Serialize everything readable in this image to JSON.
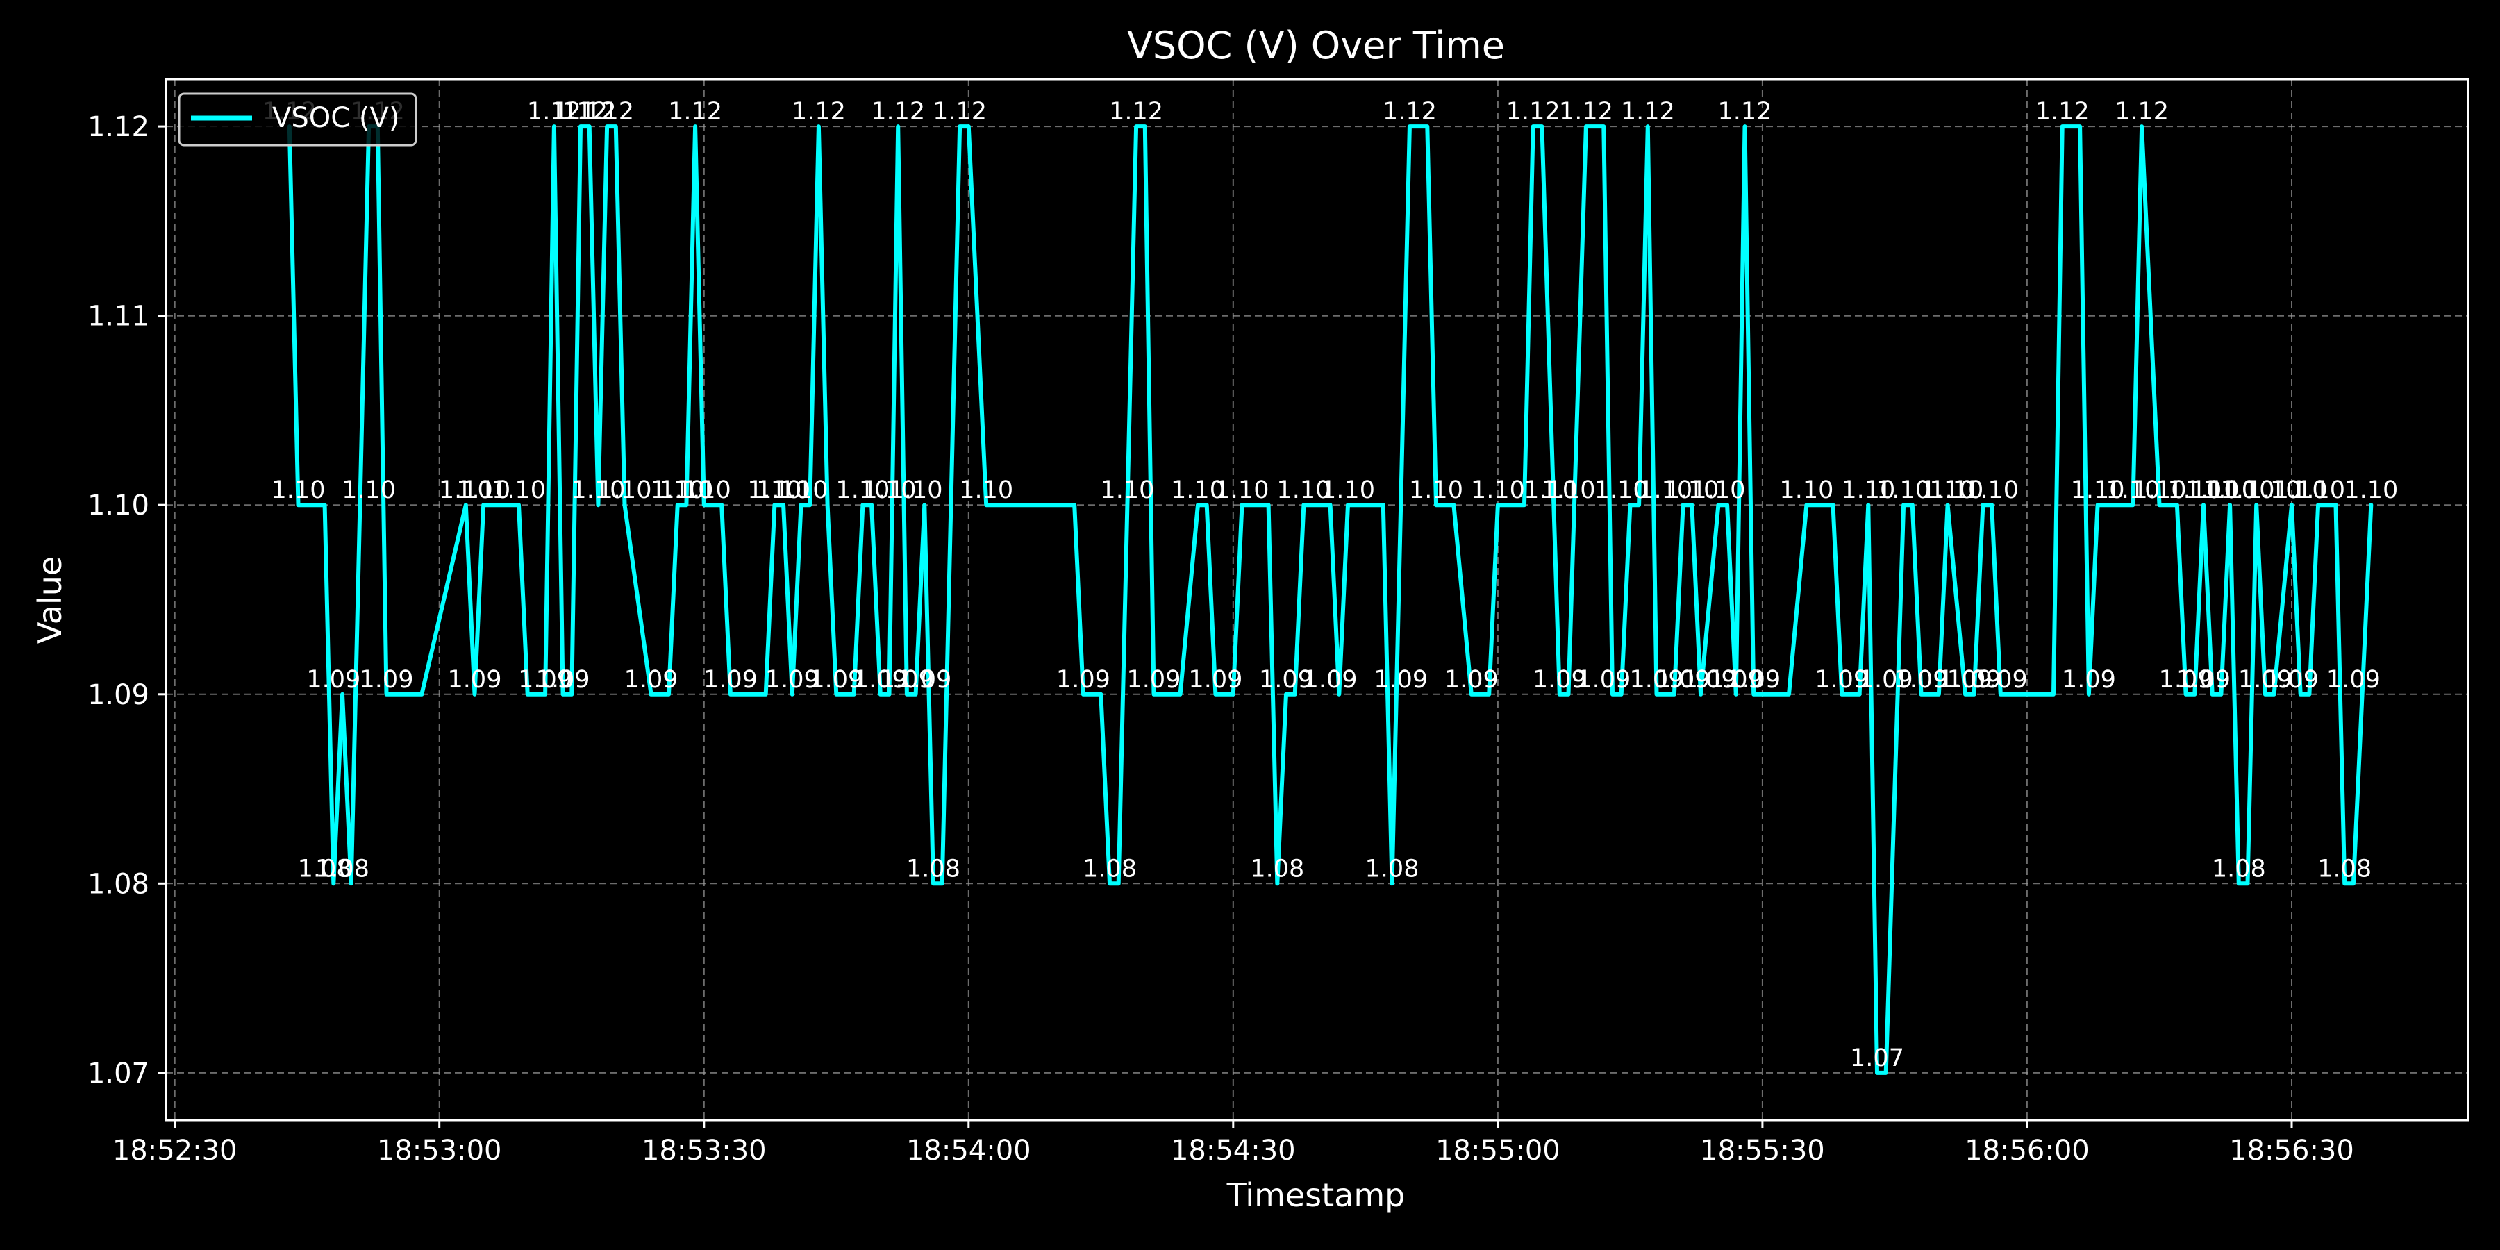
{
  "chart_data": {
    "type": "line",
    "title": "VSOC (V) Over Time",
    "xlabel": "Timestamp",
    "ylabel": "Value",
    "x_ticks": [
      "18:52:30",
      "18:53:00",
      "18:53:30",
      "18:54:00",
      "18:54:30",
      "18:55:00",
      "18:55:30",
      "18:56:00",
      "18:56:30"
    ],
    "y_ticks": [
      "1.07",
      "1.08",
      "1.09",
      "1.10",
      "1.11",
      "1.12"
    ],
    "xlim": [
      "18:52:29",
      "18:56:50"
    ],
    "ylim": [
      1.0675,
      1.1225
    ],
    "grid": true,
    "legend_position": "top-left",
    "series": [
      {
        "name": "VSOC (V)",
        "color": "#00ffff",
        "points": [
          [
            "18:52:43",
            1.12
          ],
          [
            "18:52:44",
            1.1
          ],
          [
            "18:52:47",
            1.1
          ],
          [
            "18:52:48",
            1.08
          ],
          [
            "18:52:49",
            1.09
          ],
          [
            "18:52:50",
            1.08
          ],
          [
            "18:52:52",
            1.12
          ],
          [
            "18:52:53",
            1.12
          ],
          [
            "18:52:54",
            1.09
          ],
          [
            "18:52:58",
            1.09
          ],
          [
            "18:53:03",
            1.1
          ],
          [
            "18:53:04",
            1.09
          ],
          [
            "18:53:05",
            1.1
          ],
          [
            "18:53:09",
            1.1
          ],
          [
            "18:53:10",
            1.09
          ],
          [
            "18:53:12",
            1.09
          ],
          [
            "18:53:13",
            1.12
          ],
          [
            "18:53:14",
            1.09
          ],
          [
            "18:53:15",
            1.09
          ],
          [
            "18:53:16",
            1.12
          ],
          [
            "18:53:17",
            1.12
          ],
          [
            "18:53:18",
            1.1
          ],
          [
            "18:53:19",
            1.12
          ],
          [
            "18:53:20",
            1.12
          ],
          [
            "18:53:21",
            1.1
          ],
          [
            "18:53:24",
            1.09
          ],
          [
            "18:53:26",
            1.09
          ],
          [
            "18:53:27",
            1.1
          ],
          [
            "18:53:28",
            1.1
          ],
          [
            "18:53:29",
            1.12
          ],
          [
            "18:53:30",
            1.1
          ],
          [
            "18:53:32",
            1.1
          ],
          [
            "18:53:33",
            1.09
          ],
          [
            "18:53:37",
            1.09
          ],
          [
            "18:53:38",
            1.1
          ],
          [
            "18:53:39",
            1.1
          ],
          [
            "18:53:40",
            1.09
          ],
          [
            "18:53:41",
            1.1
          ],
          [
            "18:53:42",
            1.1
          ],
          [
            "18:53:43",
            1.12
          ],
          [
            "18:53:44",
            1.1
          ],
          [
            "18:53:45",
            1.09
          ],
          [
            "18:53:47",
            1.09
          ],
          [
            "18:53:48",
            1.1
          ],
          [
            "18:53:49",
            1.1
          ],
          [
            "18:53:50",
            1.09
          ],
          [
            "18:53:51",
            1.09
          ],
          [
            "18:53:52",
            1.12
          ],
          [
            "18:53:53",
            1.09
          ],
          [
            "18:53:54",
            1.09
          ],
          [
            "18:53:55",
            1.1
          ],
          [
            "18:53:56",
            1.08
          ],
          [
            "18:53:57",
            1.08
          ],
          [
            "18:53:59",
            1.12
          ],
          [
            "18:54:00",
            1.12
          ],
          [
            "18:54:02",
            1.1
          ],
          [
            "18:54:12",
            1.1
          ],
          [
            "18:54:13",
            1.09
          ],
          [
            "18:54:15",
            1.09
          ],
          [
            "18:54:16",
            1.08
          ],
          [
            "18:54:17",
            1.08
          ],
          [
            "18:54:19",
            1.12
          ],
          [
            "18:54:20",
            1.12
          ],
          [
            "18:54:21",
            1.09
          ],
          [
            "18:54:24",
            1.09
          ],
          [
            "18:54:26",
            1.1
          ],
          [
            "18:54:27",
            1.1
          ],
          [
            "18:54:28",
            1.09
          ],
          [
            "18:54:30",
            1.09
          ],
          [
            "18:54:31",
            1.1
          ],
          [
            "18:54:34",
            1.1
          ],
          [
            "18:54:35",
            1.08
          ],
          [
            "18:54:36",
            1.09
          ],
          [
            "18:54:37",
            1.09
          ],
          [
            "18:54:38",
            1.1
          ],
          [
            "18:54:41",
            1.1
          ],
          [
            "18:54:42",
            1.09
          ],
          [
            "18:54:43",
            1.1
          ],
          [
            "18:54:47",
            1.1
          ],
          [
            "18:54:48",
            1.08
          ],
          [
            "18:54:50",
            1.12
          ],
          [
            "18:54:52",
            1.12
          ],
          [
            "18:54:53",
            1.1
          ],
          [
            "18:54:55",
            1.1
          ],
          [
            "18:54:57",
            1.09
          ],
          [
            "18:54:59",
            1.09
          ],
          [
            "18:55:00",
            1.1
          ],
          [
            "18:55:03",
            1.1
          ],
          [
            "18:55:04",
            1.12
          ],
          [
            "18:55:05",
            1.12
          ],
          [
            "18:55:07",
            1.09
          ],
          [
            "18:55:08",
            1.09
          ],
          [
            "18:55:10",
            1.12
          ],
          [
            "18:55:12",
            1.12
          ],
          [
            "18:55:13",
            1.09
          ],
          [
            "18:55:14",
            1.09
          ],
          [
            "18:55:15",
            1.1
          ],
          [
            "18:55:16",
            1.1
          ],
          [
            "18:55:17",
            1.12
          ],
          [
            "18:55:18",
            1.09
          ],
          [
            "18:55:20",
            1.09
          ],
          [
            "18:55:21",
            1.1
          ],
          [
            "18:55:22",
            1.1
          ],
          [
            "18:55:23",
            1.09
          ],
          [
            "18:55:25",
            1.1
          ],
          [
            "18:55:26",
            1.1
          ],
          [
            "18:55:27",
            1.09
          ],
          [
            "18:55:28",
            1.12
          ],
          [
            "18:55:29",
            1.09
          ],
          [
            "18:55:33",
            1.09
          ],
          [
            "18:55:35",
            1.1
          ],
          [
            "18:55:38",
            1.1
          ],
          [
            "18:55:39",
            1.09
          ],
          [
            "18:55:41",
            1.09
          ],
          [
            "18:55:42",
            1.1
          ],
          [
            "18:55:43",
            1.07
          ],
          [
            "18:55:44",
            1.07
          ],
          [
            "18:55:46",
            1.1
          ],
          [
            "18:55:47",
            1.1
          ],
          [
            "18:55:48",
            1.09
          ],
          [
            "18:55:50",
            1.09
          ],
          [
            "18:55:51",
            1.1
          ],
          [
            "18:55:53",
            1.09
          ],
          [
            "18:55:54",
            1.09
          ],
          [
            "18:55:55",
            1.1
          ],
          [
            "18:55:56",
            1.1
          ],
          [
            "18:55:57",
            1.09
          ],
          [
            "18:56:03",
            1.09
          ],
          [
            "18:56:04",
            1.12
          ],
          [
            "18:56:06",
            1.12
          ],
          [
            "18:56:07",
            1.09
          ],
          [
            "18:56:08",
            1.1
          ],
          [
            "18:56:12",
            1.1
          ],
          [
            "18:56:13",
            1.12
          ],
          [
            "18:56:15",
            1.1
          ],
          [
            "18:56:17",
            1.1
          ],
          [
            "18:56:18",
            1.09
          ],
          [
            "18:56:19",
            1.09
          ],
          [
            "18:56:20",
            1.1
          ],
          [
            "18:56:21",
            1.09
          ],
          [
            "18:56:22",
            1.09
          ],
          [
            "18:56:23",
            1.1
          ],
          [
            "18:56:24",
            1.08
          ],
          [
            "18:56:25",
            1.08
          ],
          [
            "18:56:26",
            1.1
          ],
          [
            "18:56:27",
            1.09
          ],
          [
            "18:56:28",
            1.09
          ],
          [
            "18:56:30",
            1.1
          ],
          [
            "18:56:31",
            1.09
          ],
          [
            "18:56:32",
            1.09
          ],
          [
            "18:56:33",
            1.1
          ],
          [
            "18:56:35",
            1.1
          ],
          [
            "18:56:36",
            1.08
          ],
          [
            "18:56:37",
            1.08
          ],
          [
            "18:56:39",
            1.1
          ]
        ],
        "data_labels": [
          [
            "18:52:43",
            1.12
          ],
          [
            "18:52:44",
            1.1
          ],
          [
            "18:52:47",
            1.08
          ],
          [
            "18:52:48",
            1.09
          ],
          [
            "18:52:49",
            1.08
          ],
          [
            "18:52:52",
            1.1
          ],
          [
            "18:52:53",
            1.12
          ],
          [
            "18:52:54",
            1.09
          ],
          [
            "18:53:03",
            1.1
          ],
          [
            "18:53:04",
            1.09
          ],
          [
            "18:53:05",
            1.1
          ],
          [
            "18:53:09",
            1.1
          ],
          [
            "18:53:12",
            1.09
          ],
          [
            "18:53:13",
            1.12
          ],
          [
            "18:53:14",
            1.09
          ],
          [
            "18:53:16",
            1.12
          ],
          [
            "18:53:17",
            1.12
          ],
          [
            "18:53:18",
            1.1
          ],
          [
            "18:53:19",
            1.12
          ],
          [
            "18:53:21",
            1.1
          ],
          [
            "18:53:24",
            1.09
          ],
          [
            "18:53:27",
            1.1
          ],
          [
            "18:53:28",
            1.1
          ],
          [
            "18:53:29",
            1.12
          ],
          [
            "18:53:30",
            1.1
          ],
          [
            "18:53:33",
            1.09
          ],
          [
            "18:53:38",
            1.1
          ],
          [
            "18:53:39",
            1.1
          ],
          [
            "18:53:40",
            1.09
          ],
          [
            "18:53:41",
            1.1
          ],
          [
            "18:53:43",
            1.12
          ],
          [
            "18:53:45",
            1.09
          ],
          [
            "18:53:48",
            1.1
          ],
          [
            "18:53:50",
            1.09
          ],
          [
            "18:53:51",
            1.1
          ],
          [
            "18:53:52",
            1.12
          ],
          [
            "18:53:53",
            1.09
          ],
          [
            "18:53:54",
            1.1
          ],
          [
            "18:53:55",
            1.09
          ],
          [
            "18:53:56",
            1.08
          ],
          [
            "18:53:59",
            1.12
          ],
          [
            "18:54:02",
            1.1
          ],
          [
            "18:54:13",
            1.09
          ],
          [
            "18:54:16",
            1.08
          ],
          [
            "18:54:18",
            1.1
          ],
          [
            "18:54:19",
            1.12
          ],
          [
            "18:54:21",
            1.09
          ],
          [
            "18:54:26",
            1.1
          ],
          [
            "18:54:28",
            1.09
          ],
          [
            "18:54:31",
            1.1
          ],
          [
            "18:54:35",
            1.08
          ],
          [
            "18:54:36",
            1.09
          ],
          [
            "18:54:38",
            1.1
          ],
          [
            "18:54:41",
            1.09
          ],
          [
            "18:54:43",
            1.1
          ],
          [
            "18:54:48",
            1.08
          ],
          [
            "18:54:49",
            1.09
          ],
          [
            "18:54:50",
            1.12
          ],
          [
            "18:54:53",
            1.1
          ],
          [
            "18:54:57",
            1.09
          ],
          [
            "18:55:00",
            1.1
          ],
          [
            "18:55:04",
            1.12
          ],
          [
            "18:55:06",
            1.1
          ],
          [
            "18:55:07",
            1.09
          ],
          [
            "18:55:08",
            1.1
          ],
          [
            "18:55:10",
            1.12
          ],
          [
            "18:55:12",
            1.09
          ],
          [
            "18:55:14",
            1.1
          ],
          [
            "18:55:17",
            1.12
          ],
          [
            "18:55:18",
            1.09
          ],
          [
            "18:55:19",
            1.1
          ],
          [
            "18:55:21",
            1.09
          ],
          [
            "18:55:22",
            1.1
          ],
          [
            "18:55:24",
            1.09
          ],
          [
            "18:55:25",
            1.1
          ],
          [
            "18:55:27",
            1.09
          ],
          [
            "18:55:28",
            1.12
          ],
          [
            "18:55:29",
            1.09
          ],
          [
            "18:55:35",
            1.1
          ],
          [
            "18:55:39",
            1.09
          ],
          [
            "18:55:42",
            1.1
          ],
          [
            "18:55:43",
            1.07
          ],
          [
            "18:55:44",
            1.09
          ],
          [
            "18:55:46",
            1.1
          ],
          [
            "18:55:48",
            1.09
          ],
          [
            "18:55:51",
            1.1
          ],
          [
            "18:55:52",
            1.1
          ],
          [
            "18:55:53",
            1.09
          ],
          [
            "18:55:54",
            1.09
          ],
          [
            "18:55:56",
            1.1
          ],
          [
            "18:55:57",
            1.09
          ],
          [
            "18:56:04",
            1.12
          ],
          [
            "18:56:07",
            1.09
          ],
          [
            "18:56:08",
            1.1
          ],
          [
            "18:56:12",
            1.1
          ],
          [
            "18:56:13",
            1.12
          ],
          [
            "18:56:15",
            1.1
          ],
          [
            "18:56:18",
            1.09
          ],
          [
            "18:56:19",
            1.1
          ],
          [
            "18:56:20",
            1.09
          ],
          [
            "18:56:21",
            1.1
          ],
          [
            "18:56:23",
            1.1
          ],
          [
            "18:56:24",
            1.08
          ],
          [
            "18:56:25",
            1.1
          ],
          [
            "18:56:27",
            1.09
          ],
          [
            "18:56:28",
            1.1
          ],
          [
            "18:56:30",
            1.09
          ],
          [
            "18:56:31",
            1.1
          ],
          [
            "18:56:33",
            1.1
          ],
          [
            "18:56:36",
            1.08
          ],
          [
            "18:56:37",
            1.09
          ],
          [
            "18:56:39",
            1.1
          ]
        ]
      }
    ]
  }
}
